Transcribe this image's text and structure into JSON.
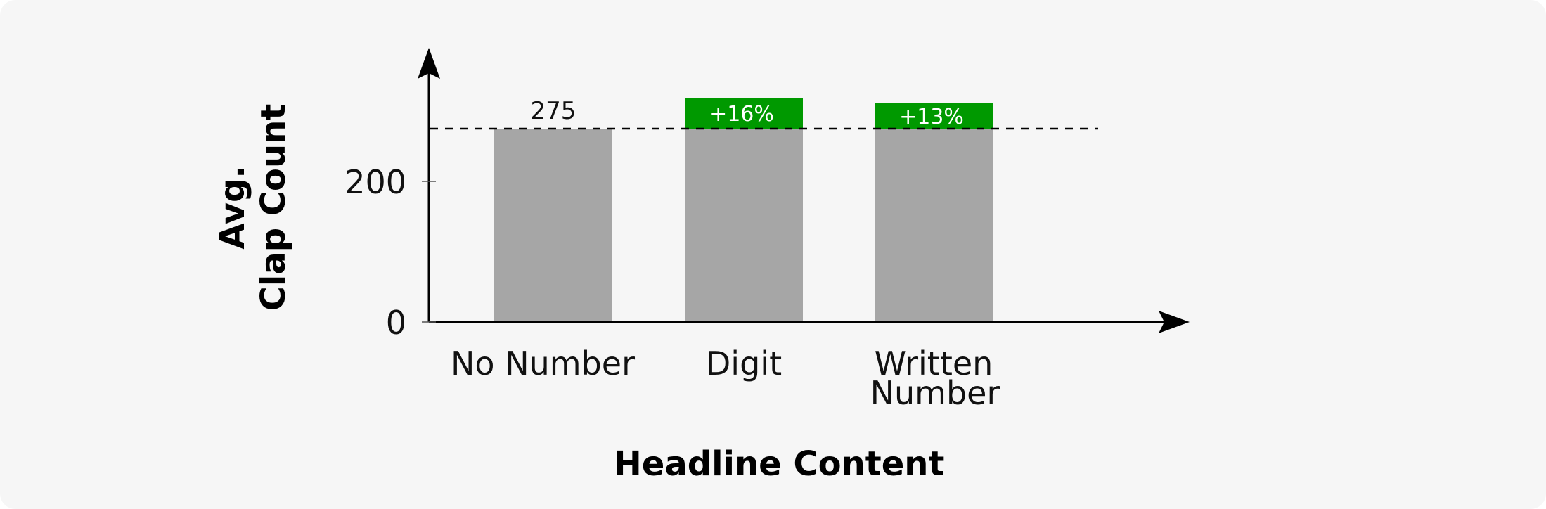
{
  "chart_data": {
    "type": "bar",
    "categories": [
      "No Number",
      "Digit",
      "Written\nNumber"
    ],
    "baseline_value": 275,
    "baseline_label": "275",
    "values": [
      275,
      319,
      311
    ],
    "increments": [
      0,
      44,
      36
    ],
    "increment_labels": [
      "",
      "+16%",
      "+13%"
    ],
    "xlabel": "Headline Content",
    "ylabel_lines": [
      "Avg.",
      "Clap Count"
    ],
    "yticks": [
      0,
      200
    ],
    "ytick_labels": [
      "0",
      "200"
    ],
    "ylim": [
      0,
      380
    ],
    "reference_line": {
      "value": 275,
      "style": "dashed"
    },
    "grid": false,
    "legend": "none",
    "colors": {
      "base": "#a6a6a6",
      "increment": "#009900",
      "axis": "#000000",
      "background": "#f6f6f6"
    }
  }
}
